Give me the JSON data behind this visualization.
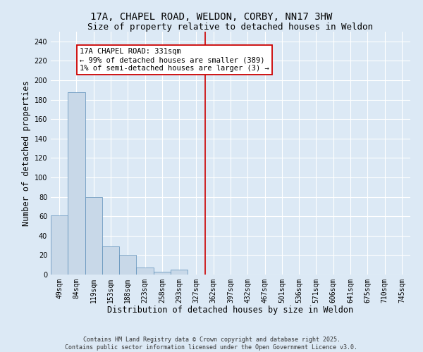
{
  "title": "17A, CHAPEL ROAD, WELDON, CORBY, NN17 3HW",
  "subtitle": "Size of property relative to detached houses in Weldon",
  "xlabel": "Distribution of detached houses by size in Weldon",
  "ylabel": "Number of detached properties",
  "bar_labels": [
    "49sqm",
    "84sqm",
    "119sqm",
    "153sqm",
    "188sqm",
    "223sqm",
    "258sqm",
    "293sqm",
    "327sqm",
    "362sqm",
    "397sqm",
    "432sqm",
    "467sqm",
    "501sqm",
    "536sqm",
    "571sqm",
    "606sqm",
    "641sqm",
    "675sqm",
    "710sqm",
    "745sqm"
  ],
  "bar_values": [
    61,
    188,
    80,
    29,
    20,
    7,
    3,
    5,
    0,
    0,
    0,
    0,
    0,
    0,
    0,
    0,
    0,
    0,
    0,
    0,
    0
  ],
  "bar_color": "#c8d8e8",
  "bar_edge_color": "#5b8db8",
  "vline_x": 8.5,
  "vline_color": "#cc0000",
  "annotation_box_text": "17A CHAPEL ROAD: 331sqm\n← 99% of detached houses are smaller (389)\n1% of semi-detached houses are larger (3) →",
  "ylim": [
    0,
    250
  ],
  "yticks": [
    0,
    20,
    40,
    60,
    80,
    100,
    120,
    140,
    160,
    180,
    200,
    220,
    240
  ],
  "background_color": "#dce9f5",
  "plot_background_color": "#dce9f5",
  "grid_color": "#ffffff",
  "footer_line1": "Contains HM Land Registry data © Crown copyright and database right 2025.",
  "footer_line2": "Contains public sector information licensed under the Open Government Licence v3.0.",
  "title_fontsize": 10,
  "subtitle_fontsize": 9,
  "tick_fontsize": 7,
  "xlabel_fontsize": 8.5,
  "ylabel_fontsize": 8.5,
  "annotation_fontsize": 7.5,
  "footer_fontsize": 6.0
}
